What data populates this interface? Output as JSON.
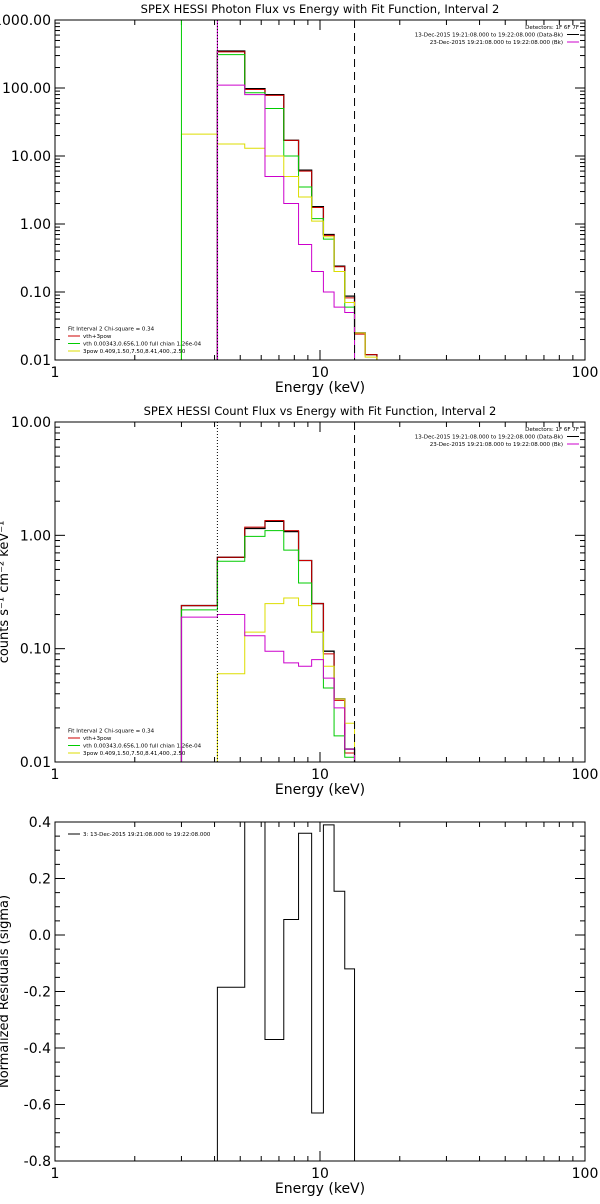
{
  "chart_data": [
    {
      "type": "line",
      "title": "SPEX HESSI Photon Flux vs Energy with Fit Function, Interval 2",
      "xlabel": "Energy (keV)",
      "ylabel": "",
      "xscale": "log",
      "yscale": "log",
      "xlim": [
        1,
        100
      ],
      "ylim": [
        0.01,
        1000
      ],
      "x_ticks": [
        "1",
        "10",
        "100"
      ],
      "y_ticks": [
        "0.01",
        "0.10",
        "1.00",
        "10.00",
        "100.00",
        "1000.00"
      ],
      "y_tick_values": [
        0.01,
        0.1,
        1,
        10,
        100,
        1000
      ],
      "vlines": [
        {
          "x": 3.0,
          "style": "solid",
          "color": "#00cc00"
        },
        {
          "x": 4.1,
          "style": "solid",
          "color": "#cc00cc"
        },
        {
          "x": 4.1,
          "style": "dotted",
          "color": "#000000"
        },
        {
          "x": 13.5,
          "style": "dashed",
          "color": "#000000"
        }
      ],
      "legend_right": {
        "placement": "top-right",
        "lines": [
          {
            "text": "Detectors: 1F 6F 7F",
            "color": ""
          },
          {
            "text": "13-Dec-2015 19:21:08.000 to 19:22:08.000 (Data-Bk)",
            "color": "#000000"
          },
          {
            "text": "23-Dec-2015 19:21:08.000 to 19:22:08.000 (Bk)",
            "color": "#cc00cc"
          }
        ]
      },
      "legend_left": {
        "placement": "bottom-left",
        "lines": [
          {
            "text": "Fit Interval 2   Chi-square = 0.34",
            "color": ""
          },
          {
            "text": "vth+3pow",
            "color": "#cc0000"
          },
          {
            "text": "vth 0.00343,0.656,1.00  full chian 1.26e-04",
            "color": "#00cc00"
          },
          {
            "text": "3pow 0.409,1.50,7.50,8.41,400.,2.50",
            "color": "#dddd00"
          }
        ]
      },
      "edges": [
        3.0,
        4.1,
        5.2,
        6.2,
        7.3,
        8.3,
        9.3,
        10.3,
        11.3,
        12.4,
        13.5,
        14.8,
        16.4
      ],
      "series": [
        {
          "name": "",
          "color": "#000000",
          "width": 1.3,
          "start": 1,
          "values": [
            350,
            98,
            80,
            17,
            6.2,
            1.8,
            0.7,
            0.24,
            0.087,
            0.025,
            0.012
          ]
        },
        {
          "name": "vth+3pow",
          "color": "#cc0000",
          "width": 1,
          "start": 1,
          "values": [
            340,
            95,
            78,
            17,
            6.0,
            1.75,
            0.68,
            0.235,
            0.082,
            0.024,
            0.012
          ]
        },
        {
          "name": "vth",
          "color": "#00cc00",
          "width": 1,
          "start": 1,
          "values": [
            310,
            85,
            50,
            10,
            3.5,
            1.2,
            0.6,
            0.2,
            0.06,
            0.01,
            0.01
          ]
        },
        {
          "name": "3pow",
          "color": "#dddd00",
          "width": 1,
          "start": 0,
          "values": [
            21,
            15,
            13,
            10,
            5,
            2.5,
            1.1,
            0.65,
            0.2,
            0.07,
            0.025,
            0.011
          ]
        },
        {
          "name": "",
          "color": "#cc00cc",
          "width": 1,
          "start": 1,
          "values": [
            110,
            80,
            5,
            2,
            0.5,
            0.2,
            0.1,
            0.06,
            0.05
          ]
        }
      ]
    },
    {
      "type": "line",
      "title": "SPEX HESSI Count Flux vs Energy with Fit Function, Interval 2",
      "xlabel": "Energy (keV)",
      "ylabel": "counts s⁻¹ cm⁻² keV⁻¹",
      "xscale": "log",
      "yscale": "log",
      "xlim": [
        1,
        100
      ],
      "ylim": [
        0.01,
        10
      ],
      "x_ticks": [
        "1",
        "10",
        "100"
      ],
      "y_ticks": [
        "0.01",
        "0.10",
        "1.00",
        "10.00"
      ],
      "y_tick_values": [
        0.01,
        0.1,
        1,
        10
      ],
      "vlines": [
        {
          "x": 4.1,
          "style": "dotted",
          "color": "#000000"
        },
        {
          "x": 13.5,
          "style": "dashed",
          "color": "#000000"
        }
      ],
      "legend_right": {
        "placement": "top-right",
        "lines": [
          {
            "text": "Detectors: 1F 6F 7F",
            "color": ""
          },
          {
            "text": "13-Dec-2015 19:21:08.000 to 19:22:08.000 (Data-Bk)",
            "color": "#000000"
          },
          {
            "text": "23-Dec-2015 19:21:08.000 to 19:22:08.000 (Bk)",
            "color": "#cc00cc"
          }
        ]
      },
      "legend_left": {
        "placement": "bottom-left",
        "lines": [
          {
            "text": "Fit Interval 2   Chi-square = 0.34",
            "color": ""
          },
          {
            "text": "vth+3pow",
            "color": "#cc0000"
          },
          {
            "text": "vth 0.00343,0.656,1.00  full chian 1.26e-04",
            "color": "#00cc00"
          },
          {
            "text": "3pow 0.409,1.50,7.50,8.41,400.,2.50",
            "color": "#dddd00"
          }
        ]
      },
      "edges": [
        3.0,
        4.1,
        5.2,
        6.2,
        7.3,
        8.3,
        9.3,
        10.3,
        11.3,
        12.4,
        13.5
      ],
      "series": [
        {
          "name": "",
          "color": "#000000",
          "width": 1.3,
          "start": 0,
          "values": [
            0.24,
            0.64,
            1.15,
            1.33,
            1.08,
            0.6,
            0.25,
            0.095,
            0.036,
            0.013
          ]
        },
        {
          "name": "vth+3pow",
          "color": "#cc0000",
          "width": 1,
          "start": 0,
          "values": [
            0.24,
            0.64,
            1.18,
            1.35,
            1.1,
            0.6,
            0.25,
            0.09,
            0.035,
            0.012
          ]
        },
        {
          "name": "vth",
          "color": "#00cc00",
          "width": 1,
          "start": 0,
          "values": [
            0.22,
            0.59,
            0.98,
            1.1,
            0.74,
            0.38,
            0.14,
            0.045,
            0.017,
            0.011
          ]
        },
        {
          "name": "3pow",
          "color": "#dddd00",
          "width": 1,
          "start": 1,
          "values": [
            0.06,
            0.14,
            0.25,
            0.28,
            0.24,
            0.14,
            0.07,
            0.036,
            0.022
          ]
        },
        {
          "name": "",
          "color": "#cc00cc",
          "width": 1,
          "start": 0,
          "values": [
            0.19,
            0.2,
            0.13,
            0.095,
            0.075,
            0.07,
            0.08,
            0.055,
            0.03,
            0.013
          ]
        }
      ]
    },
    {
      "type": "line",
      "title": "",
      "xlabel": "Energy (keV)",
      "ylabel": "Normalized Residuals (sigma)",
      "xscale": "log",
      "yscale": "linear",
      "xlim": [
        1,
        100
      ],
      "ylim": [
        -0.8,
        0.4
      ],
      "x_ticks": [
        "1",
        "10",
        "100"
      ],
      "y_ticks": [
        "-0.8",
        "-0.6",
        "-0.4",
        "-0.2",
        "0.0",
        "0.2",
        "0.4"
      ],
      "y_tick_values": [
        -0.8,
        -0.6,
        -0.4,
        -0.2,
        0.0,
        0.2,
        0.4
      ],
      "vlines": [],
      "legend_left": {
        "placement": "top-left",
        "lines": [
          {
            "text": "3: 13-Dec-2015 19:21:08.000 to 19:22:08.000",
            "color": "#000000"
          }
        ]
      },
      "edges": [
        4.1,
        5.2,
        6.2,
        7.3,
        8.3,
        9.3,
        10.3,
        11.3,
        12.4,
        13.5
      ],
      "series": [
        {
          "name": "",
          "color": "#000000",
          "width": 1,
          "start": 0,
          "values": [
            -0.185,
            0.4,
            -0.37,
            0.055,
            0.36,
            -0.63,
            0.39,
            0.155,
            -0.12
          ],
          "closeToBottom": true
        }
      ]
    }
  ]
}
